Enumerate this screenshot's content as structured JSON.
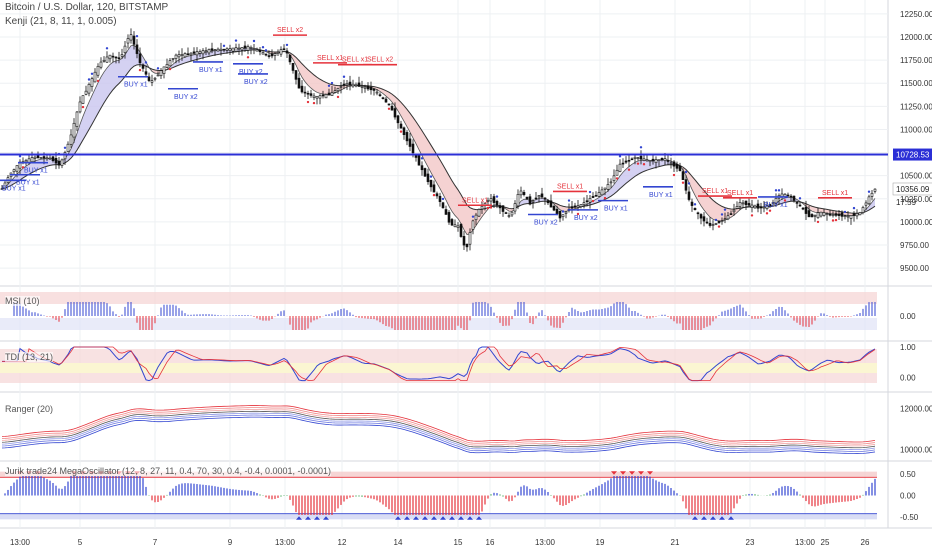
{
  "header": {
    "symbol_line": "Bitcoin / U.S. Dollar, 120, BITSTAMP",
    "indicator_line": "Kenji (21, 8, 11, 1, 0.005)"
  },
  "colors": {
    "candle": "#111111",
    "buy": "#3346d1",
    "sell": "#e5323b",
    "band_fill": "#c9c6ef",
    "band_fill_red": "#f2c7c7",
    "level_line": "#2b2fd6",
    "grid": "#eef0f3",
    "axis_text": "#333333",
    "rsi_zone": "#f5d3d3",
    "mega_zone_red": "#f4caca",
    "mega_zone_blue": "#cfd5f3",
    "tdi_band": "#fbf6d2",
    "green": "#2e9e45"
  },
  "chart_data": [
    {
      "type": "line",
      "name": "price",
      "x_ticks": [
        "13:00",
        "5",
        "7",
        "9",
        "13:00",
        "12",
        "14",
        "15",
        "16",
        "13:00",
        "19",
        "21",
        "23",
        "13:00",
        "25",
        "26"
      ],
      "y_ticks": [
        "12250.00",
        "12000.00",
        "11750.00",
        "11500.00",
        "11250.00",
        "11000.00",
        "10750.00",
        "10500.00",
        "10250.00",
        "10000.00",
        "9750.00",
        "9500.00"
      ],
      "ylim": [
        9350,
        12400
      ],
      "price_label": "10728.53",
      "current_label": "10356.09",
      "timer_label": "17:59",
      "level": 10728.53,
      "close_points": [
        [
          0,
          10320
        ],
        [
          10,
          10520
        ],
        [
          20,
          10640
        ],
        [
          35,
          10700
        ],
        [
          50,
          10690
        ],
        [
          60,
          10610
        ],
        [
          70,
          10900
        ],
        [
          80,
          11300
        ],
        [
          90,
          11500
        ],
        [
          100,
          11720
        ],
        [
          110,
          11800
        ],
        [
          120,
          11760
        ],
        [
          130,
          12050
        ],
        [
          140,
          11720
        ],
        [
          150,
          11500
        ],
        [
          160,
          11620
        ],
        [
          175,
          11800
        ],
        [
          190,
          11820
        ],
        [
          210,
          11860
        ],
        [
          230,
          11870
        ],
        [
          250,
          11890
        ],
        [
          270,
          11790
        ],
        [
          285,
          11880
        ],
        [
          300,
          11420
        ],
        [
          315,
          11350
        ],
        [
          330,
          11380
        ],
        [
          345,
          11500
        ],
        [
          360,
          11470
        ],
        [
          375,
          11420
        ],
        [
          390,
          11250
        ],
        [
          400,
          11030
        ],
        [
          410,
          10820
        ],
        [
          420,
          10600
        ],
        [
          430,
          10400
        ],
        [
          440,
          10220
        ],
        [
          450,
          9980
        ],
        [
          458,
          9950
        ],
        [
          466,
          9680
        ],
        [
          472,
          10000
        ],
        [
          480,
          10150
        ],
        [
          490,
          10260
        ],
        [
          500,
          10150
        ],
        [
          510,
          10050
        ],
        [
          520,
          10350
        ],
        [
          530,
          10200
        ],
        [
          540,
          10300
        ],
        [
          550,
          10180
        ],
        [
          560,
          10050
        ],
        [
          570,
          10150
        ],
        [
          580,
          10180
        ],
        [
          590,
          10250
        ],
        [
          600,
          10320
        ],
        [
          610,
          10420
        ],
        [
          620,
          10620
        ],
        [
          635,
          10700
        ],
        [
          650,
          10660
        ],
        [
          665,
          10680
        ],
        [
          680,
          10560
        ],
        [
          690,
          10200
        ],
        [
          700,
          10050
        ],
        [
          710,
          9960
        ],
        [
          720,
          10000
        ],
        [
          730,
          10080
        ],
        [
          740,
          10210
        ],
        [
          750,
          10180
        ],
        [
          760,
          10150
        ],
        [
          770,
          10180
        ],
        [
          780,
          10300
        ],
        [
          790,
          10280
        ],
        [
          800,
          10170
        ],
        [
          810,
          10050
        ],
        [
          820,
          10100
        ],
        [
          830,
          10080
        ],
        [
          840,
          10070
        ],
        [
          850,
          10060
        ],
        [
          860,
          10100
        ],
        [
          868,
          10250
        ],
        [
          875,
          10360
        ]
      ]
    },
    {
      "type": "bar",
      "name": "MSI (10)",
      "label": "MSI (10)",
      "y_ticks": [
        "0.00"
      ],
      "ylim": [
        -1,
        1
      ]
    },
    {
      "type": "line",
      "name": "TDI (13, 21)",
      "label": "TDI (13, 21)",
      "y_ticks": [
        "1.00",
        "0.00"
      ],
      "ylim": [
        -0.25,
        1.05
      ]
    },
    {
      "type": "line",
      "name": "Ranger (20)",
      "label": "Ranger (20)",
      "y_ticks": [
        "12000.00",
        "10000.00"
      ],
      "ylim": [
        9500,
        12700
      ]
    },
    {
      "type": "bar",
      "name": "Jurik Trade24 MegaOscillator",
      "label": "Jurik trade24 MegaOscillator (12, 8, 27, 11, 0.4, 70, 30, 0.4, -0.4, 0.0001, -0.0001)",
      "y_ticks": [
        "0.50",
        "0.00",
        "-0.50"
      ],
      "ylim": [
        -0.75,
        0.75
      ]
    }
  ],
  "annotations": {
    "buy": [
      {
        "text": "BUY x1",
        "x": 8,
        "p": 10450
      },
      {
        "text": "BUY x1",
        "x": 22,
        "p": 10510
      },
      {
        "text": "BUY x1",
        "x": 30,
        "p": 10640
      },
      {
        "text": "BUY x1",
        "x": 130,
        "p": 11570
      },
      {
        "text": "BUY x1",
        "x": 205,
        "p": 11730
      },
      {
        "text": "BUY x2",
        "x": 180,
        "p": 11440
      },
      {
        "text": "BUY x2",
        "x": 245,
        "p": 11710
      },
      {
        "text": "BUY x2",
        "x": 250,
        "p": 11600
      },
      {
        "text": "BUY x1",
        "x": 610,
        "p": 10230
      },
      {
        "text": "BUY x1",
        "x": 655,
        "p": 10380
      },
      {
        "text": "BUY x2",
        "x": 540,
        "p": 10080
      },
      {
        "text": "BUY x2",
        "x": 580,
        "p": 10130
      },
      {
        "text": "BUY x1",
        "x": 770,
        "p": 10270
      }
    ],
    "sell": [
      {
        "text": "SELL x2",
        "x": 285,
        "p": 12020
      },
      {
        "text": "SELL x1",
        "x": 325,
        "p": 11720
      },
      {
        "text": "SELL x1",
        "x": 350,
        "p": 11700
      },
      {
        "text": "SELL x2",
        "x": 375,
        "p": 11700
      },
      {
        "text": "SELL x1",
        "x": 565,
        "p": 10330
      },
      {
        "text": "SELL x1",
        "x": 470,
        "p": 10180
      },
      {
        "text": "SELL x1",
        "x": 735,
        "p": 10260
      },
      {
        "text": "SELL x1",
        "x": 710,
        "p": 10280
      },
      {
        "text": "SELL x1",
        "x": 830,
        "p": 10260
      }
    ]
  }
}
